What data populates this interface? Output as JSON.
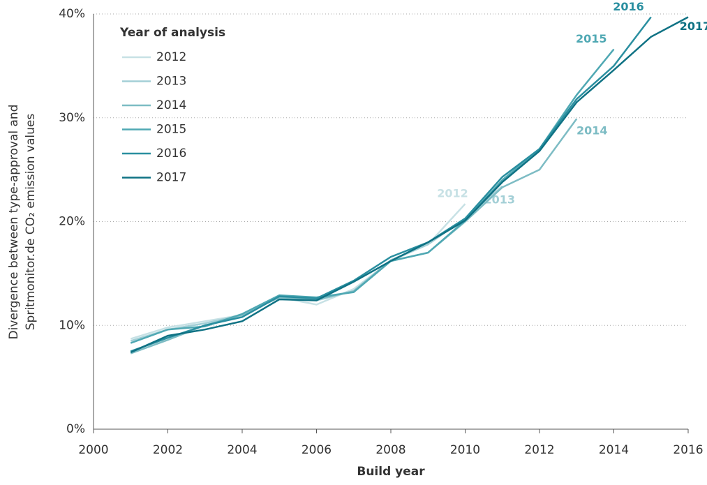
{
  "chart_data": {
    "type": "line",
    "xlabel": "Build year",
    "ylabel": [
      "Divergence between type-approval and",
      "Spritmonitor.de CO₂ emission values"
    ],
    "legend_title": "Year of analysis",
    "legend": "upper left",
    "grid": true,
    "x": [
      2001,
      2002,
      2003,
      2004,
      2005,
      2006,
      2007,
      2008,
      2009,
      2010,
      2011,
      2012,
      2013,
      2014,
      2015,
      2016
    ],
    "xlim": [
      2000,
      2016
    ],
    "xticks": [
      2000,
      2002,
      2004,
      2006,
      2008,
      2010,
      2012,
      2014,
      2016
    ],
    "ylim": [
      0,
      40
    ],
    "yticks": [
      {
        "value": 0,
        "label": "0%"
      },
      {
        "value": 10,
        "label": "10%"
      },
      {
        "value": 20,
        "label": "20%"
      },
      {
        "value": 30,
        "label": "30%"
      },
      {
        "value": 40,
        "label": "40%"
      }
    ],
    "series": [
      {
        "name": "2012",
        "color": "#c7e1e5",
        "values": [
          8.7,
          9.8,
          10.4,
          11.0,
          12.7,
          12.0,
          13.5,
          16.2,
          17.8,
          21.7,
          null,
          null,
          null,
          null,
          null,
          null
        ]
      },
      {
        "name": "2013",
        "color": "#a3cfd6",
        "values": [
          8.5,
          9.6,
          10.2,
          11.0,
          12.8,
          12.4,
          13.3,
          16.3,
          17.8,
          20.3,
          23.4,
          null,
          null,
          null,
          null,
          null
        ]
      },
      {
        "name": "2014",
        "color": "#7dbcc4",
        "values": [
          7.3,
          8.6,
          10.0,
          11.0,
          12.7,
          12.5,
          13.3,
          16.2,
          17.0,
          20.0,
          23.3,
          25.0,
          29.9,
          null,
          null,
          null
        ]
      },
      {
        "name": "2015",
        "color": "#4fa8b3",
        "values": [
          8.3,
          9.6,
          9.9,
          11.1,
          12.9,
          12.7,
          13.2,
          16.2,
          17.0,
          20.1,
          24.0,
          27.0,
          32.2,
          36.6,
          null,
          null
        ]
      },
      {
        "name": "2016",
        "color": "#2a8fa0",
        "values": [
          7.5,
          8.8,
          10.0,
          10.8,
          12.8,
          12.6,
          14.3,
          16.6,
          18.0,
          20.3,
          24.3,
          27.0,
          31.8,
          35.0,
          39.7,
          null
        ]
      },
      {
        "name": "2017",
        "color": "#0f7284",
        "values": [
          7.4,
          9.0,
          9.6,
          10.4,
          12.5,
          12.4,
          14.2,
          16.2,
          18.0,
          20.1,
          23.8,
          26.8,
          31.5,
          34.6,
          37.8,
          39.7
        ]
      }
    ]
  }
}
